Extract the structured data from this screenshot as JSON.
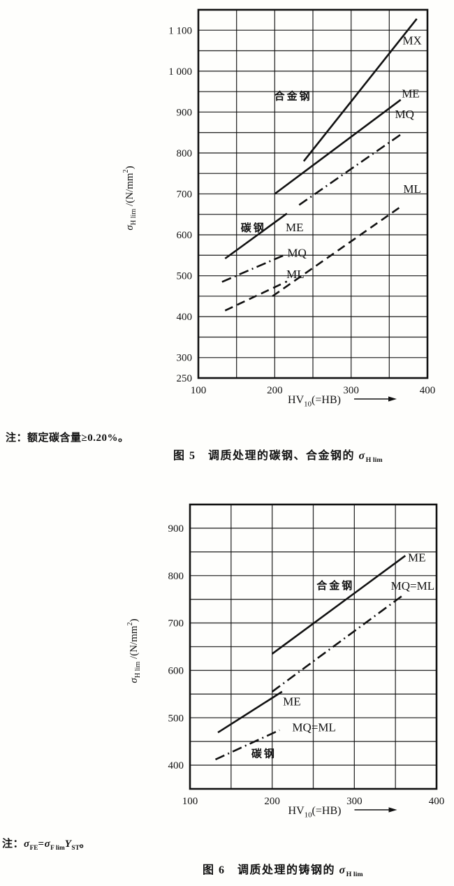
{
  "page": {
    "figure5": {
      "note_parts": [
        {
          "t": "注：额定碳含量≥0.20%。"
        }
      ],
      "caption_parts": [
        {
          "t": "图 5　调质处理的碳钢、合金钢的 "
        },
        {
          "t": "σ",
          "i": true
        },
        {
          "t": "H lim",
          "sub": true
        }
      ]
    },
    "figure6": {
      "note_parts": [
        {
          "t": "注："
        },
        {
          "t": "σ",
          "i": true
        },
        {
          "t": "FE",
          "sub": true
        },
        {
          "t": "="
        },
        {
          "t": "σ",
          "i": true
        },
        {
          "t": "F lim",
          "sub": true
        },
        {
          "t": "Y",
          "i": true
        },
        {
          "t": "ST",
          "sub": true
        },
        {
          "t": "。"
        }
      ],
      "caption_parts": [
        {
          "t": "图 6　调质处理的铸钢的 "
        },
        {
          "t": "σ",
          "i": true
        },
        {
          "t": "H lim",
          "sub": true
        }
      ]
    }
  },
  "chart_data": [
    {
      "type": "line",
      "title": "图5 调质处理的碳钢、合金钢的 σH lim",
      "xlabel": "HV10(=HB)",
      "ylabel": "σH lim /(N/mm²)",
      "ink": "#111111",
      "grid": true,
      "xlim": [
        100,
        400
      ],
      "ylim": [
        250,
        1150
      ],
      "grid_step": {
        "x": 50,
        "y": 50
      },
      "x_ticks": [
        {
          "v": 100,
          "label": "100"
        },
        {
          "v": 200,
          "label": "200"
        },
        {
          "v": 300,
          "label": "300"
        },
        {
          "v": 400,
          "label": "400"
        }
      ],
      "y_ticks": [
        {
          "v": 250,
          "label": "250"
        },
        {
          "v": 300,
          "label": "300"
        },
        {
          "v": 400,
          "label": "400"
        },
        {
          "v": 500,
          "label": "500"
        },
        {
          "v": 600,
          "label": "600"
        },
        {
          "v": 700,
          "label": "700"
        },
        {
          "v": 800,
          "label": "800"
        },
        {
          "v": 900,
          "label": "900"
        },
        {
          "v": 1000,
          "label": "1 000"
        },
        {
          "v": 1100,
          "label": "1 100"
        }
      ],
      "xlabel_parts": [
        {
          "t": "HV"
        },
        {
          "t": "10",
          "sub": true
        },
        {
          "t": "(=HB)"
        }
      ],
      "ylabel_parts": [
        {
          "t": "σ",
          "i": true
        },
        {
          "t": "H lim",
          "sub": true
        },
        {
          "t": " /(N/mm"
        },
        {
          "t": "2",
          "sup": true
        },
        {
          "t": ")"
        }
      ],
      "series": [
        {
          "name": "碳钢 ME",
          "group": "碳钢",
          "grade": "ME",
          "style": "solid",
          "points": [
            [
              135,
              542
            ],
            [
              216,
              652
            ]
          ]
        },
        {
          "name": "碳钢 MQ",
          "group": "碳钢",
          "grade": "MQ",
          "style": "dashdot",
          "points": [
            [
              131,
              485
            ],
            [
              212,
              550
            ]
          ]
        },
        {
          "name": "碳钢 ML",
          "group": "碳钢",
          "grade": "ML",
          "style": "dashed",
          "points": [
            [
              135,
              415
            ],
            [
              216,
              486
            ]
          ]
        },
        {
          "name": "合金钢 MX",
          "group": "合金钢",
          "grade": "MX",
          "style": "solid",
          "points": [
            [
              238,
              780
            ],
            [
              386,
              1128
            ]
          ]
        },
        {
          "name": "合金钢 ME",
          "group": "合金钢",
          "grade": "ME",
          "style": "solid",
          "points": [
            [
              200,
              700
            ],
            [
              365,
              930
            ]
          ]
        },
        {
          "name": "合金钢 MQ",
          "group": "合金钢",
          "grade": "MQ",
          "style": "dashdot",
          "points": [
            [
              232,
              673
            ],
            [
              365,
              845
            ]
          ]
        },
        {
          "name": "合金钢 ML",
          "group": "合金钢",
          "grade": "ML",
          "style": "dashed",
          "points": [
            [
              197,
              450
            ],
            [
              366,
              670
            ]
          ]
        }
      ],
      "labels": [
        {
          "t": "合金钢",
          "x": 224,
          "y": 940,
          "cjk": true
        },
        {
          "t": "MX",
          "x": 380,
          "y": 1075
        },
        {
          "t": "ME",
          "x": 378,
          "y": 945
        },
        {
          "t": "MQ",
          "x": 370,
          "y": 895
        },
        {
          "t": "ML",
          "x": 380,
          "y": 712
        },
        {
          "t": "碳钢",
          "x": 172,
          "y": 618,
          "cjk": true
        },
        {
          "t": "ME",
          "x": 226,
          "y": 618
        },
        {
          "t": "MQ",
          "x": 229,
          "y": 556
        },
        {
          "t": "ML",
          "x": 227,
          "y": 504
        }
      ]
    },
    {
      "type": "line",
      "title": "图6 调质处理的铸钢的 σH lim",
      "xlabel": "HV10(=HB)",
      "ylabel": "σH lim /(N/mm²)",
      "ink": "#111111",
      "grid": true,
      "xlim": [
        100,
        400
      ],
      "ylim": [
        350,
        950
      ],
      "grid_step": {
        "x": 50,
        "y": 50
      },
      "x_ticks": [
        {
          "v": 100,
          "label": "100"
        },
        {
          "v": 200,
          "label": "200"
        },
        {
          "v": 300,
          "label": "300"
        },
        {
          "v": 400,
          "label": "400"
        }
      ],
      "y_ticks": [
        {
          "v": 400,
          "label": "400"
        },
        {
          "v": 500,
          "label": "500"
        },
        {
          "v": 600,
          "label": "600"
        },
        {
          "v": 700,
          "label": "700"
        },
        {
          "v": 800,
          "label": "800"
        },
        {
          "v": 900,
          "label": "900"
        }
      ],
      "xlabel_parts": [
        {
          "t": "HV"
        },
        {
          "t": "10",
          "sub": true
        },
        {
          "t": "(=HB)"
        }
      ],
      "ylabel_parts": [
        {
          "t": "σ",
          "i": true
        },
        {
          "t": "H lim",
          "sub": true
        },
        {
          "t": " /(N/mm"
        },
        {
          "t": "2",
          "sup": true
        },
        {
          "t": ")"
        }
      ],
      "series": [
        {
          "name": "铸造碳钢 ME",
          "group": "碳钢",
          "grade": "ME",
          "style": "solid",
          "points": [
            [
              134,
              469
            ],
            [
              212,
              555
            ]
          ]
        },
        {
          "name": "铸造碳钢 MQ=ML",
          "group": "碳钢",
          "grade": "MQ=ML",
          "style": "dashdot",
          "points": [
            [
              131,
              412
            ],
            [
              209,
              474
            ]
          ]
        },
        {
          "name": "铸造合金钢 ME",
          "group": "合金钢",
          "grade": "ME",
          "style": "solid",
          "points": [
            [
              200,
              635
            ],
            [
              362,
              842
            ]
          ]
        },
        {
          "name": "铸造合金钢 MQ=ML",
          "group": "合金钢",
          "grade": "MQ=ML",
          "style": "dashdot",
          "points": [
            [
              200,
              555
            ],
            [
              358,
              757
            ]
          ]
        }
      ],
      "labels": [
        {
          "t": "合金钢",
          "x": 277,
          "y": 780,
          "cjk": true
        },
        {
          "t": "ME",
          "x": 376,
          "y": 838
        },
        {
          "t": "MQ=ML",
          "x": 371,
          "y": 778
        },
        {
          "t": "碳钢",
          "x": 190,
          "y": 425,
          "cjk": true
        },
        {
          "t": "ME",
          "x": 224,
          "y": 534
        },
        {
          "t": "MQ=ML",
          "x": 251,
          "y": 480
        }
      ]
    }
  ]
}
